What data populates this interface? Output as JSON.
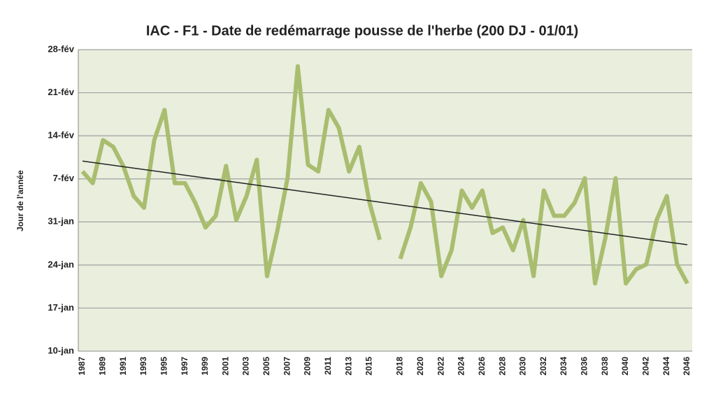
{
  "chart_data": {
    "type": "line",
    "title": "IAC - F1 - Date de redémarrage pousse de l'herbe (200 DJ - 01/01)",
    "y_label": "Jour de l'année",
    "categories": [
      "1987",
      null,
      "1989",
      null,
      "1991",
      null,
      "1993",
      null,
      "1995",
      null,
      "1997",
      null,
      "1999",
      null,
      "2001",
      null,
      "2003",
      null,
      "2005",
      null,
      "2007",
      null,
      "2009",
      null,
      "2011",
      null,
      "2013",
      null,
      "2015",
      null,
      null,
      "2018",
      null,
      "2020",
      null,
      "2022",
      null,
      "2024",
      null,
      "2026",
      null,
      "2028",
      null,
      "2030",
      null,
      "2032",
      null,
      "2034",
      null,
      "2036",
      null,
      "2038",
      null,
      "2040",
      null,
      "2042",
      null,
      "2044",
      null,
      "2046"
    ],
    "series": [
      {
        "color": "#a9bd6f",
        "values": [
          39.2,
          37.3,
          44.3,
          43.2,
          40,
          35.2,
          33.3,
          44.3,
          49.2,
          37.3,
          37.3,
          34.1,
          30.1,
          32,
          40.1,
          31.3,
          35.2,
          41.1,
          22.2,
          29.5,
          38.1,
          56.3,
          40.3,
          39.2,
          49.2,
          46.3,
          39.2,
          43.2,
          34.1,
          28.1,
          null,
          25,
          30.1,
          37.3,
          34.3,
          22.2,
          26.4,
          36.1,
          33.3,
          36.1,
          29.2,
          30.1,
          26.4,
          31.3,
          22.2,
          36.1,
          32,
          32,
          34.1,
          38.1,
          21,
          28.4,
          38.1,
          21,
          23.3,
          24.1,
          31.3,
          35.2,
          24.1,
          21
        ]
      }
    ],
    "trend_line": {
      "color": "#222222",
      "start": 40.9,
      "end": 27.3
    },
    "ylim": [
      10,
      59
    ],
    "yticks": [
      {
        "value": 10,
        "label": "10-jan"
      },
      {
        "value": 17,
        "label": "17-jan"
      },
      {
        "value": 24,
        "label": "24-jan"
      },
      {
        "value": 31,
        "label": "31-jan"
      },
      {
        "value": 38,
        "label": "7-fév"
      },
      {
        "value": 45,
        "label": "14-fév"
      },
      {
        "value": 52,
        "label": "21-fév"
      },
      {
        "value": 59,
        "label": "28-fév"
      }
    ],
    "grid": true
  }
}
